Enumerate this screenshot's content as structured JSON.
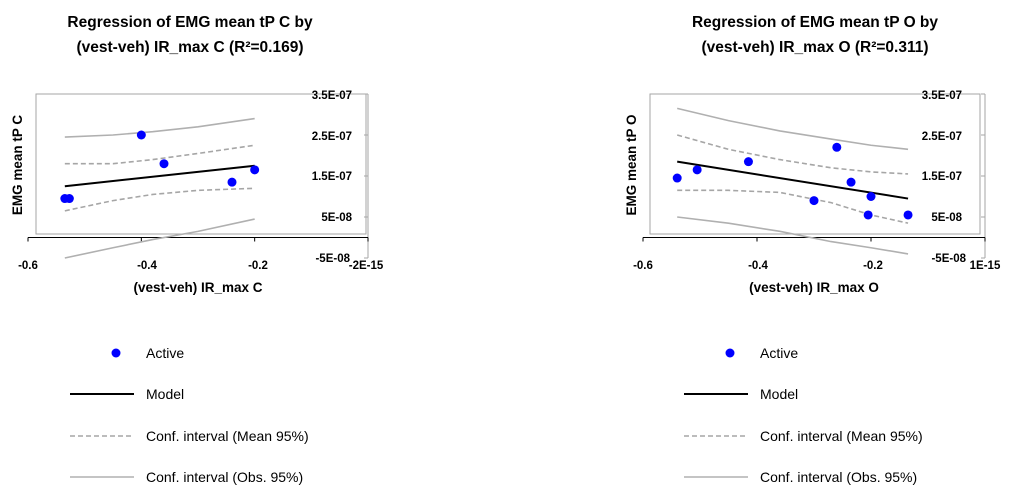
{
  "chart_data": [
    {
      "type": "scatter",
      "title": [
        "Regression of EMG mean tP C by",
        "(vest-veh) IR_max C (R²=0.169)"
      ],
      "xlabel": "(vest-veh) IR_max C",
      "ylabel": "EMG mean tP C",
      "xlim": [
        -0.6,
        0.0
      ],
      "ylim": [
        -5e-08,
        3.5e-07
      ],
      "x_ticks": [
        -0.6,
        -0.4,
        -0.2
      ],
      "x_tick_labels": [
        "-0.6",
        "-0.4",
        "-0.2"
      ],
      "x_origin_label": "-2E-15",
      "y_ticks": [
        -5e-08,
        5e-08,
        1.5e-07,
        2.5e-07,
        3.5e-07
      ],
      "y_tick_labels": [
        "-5E-08",
        "5E-08",
        "1.5E-07",
        "2.5E-07",
        "3.5E-07"
      ],
      "grid": false,
      "legend_position": "bottom-left",
      "colors": {
        "active": "#0000ff",
        "model": "#000000",
        "conf_mean": "#a6a6a6",
        "conf_obs": "#b0b0b0",
        "frame": "#a6a6a6"
      },
      "series": [
        {
          "name": "Active",
          "kind": "points",
          "x": [
            -0.535,
            -0.527,
            -0.4,
            -0.36,
            -0.24,
            -0.2
          ],
          "y": [
            9.5e-08,
            9.5e-08,
            2.5e-07,
            1.8e-07,
            1.35e-07,
            1.65e-07
          ]
        },
        {
          "name": "Model",
          "kind": "line",
          "x": [
            -0.535,
            -0.2
          ],
          "y": [
            1.25e-07,
            1.75e-07
          ]
        },
        {
          "name": "Conf. interval (Mean 95%)",
          "kind": "dashed",
          "band": "upper",
          "x": [
            -0.535,
            -0.45,
            -0.38,
            -0.3,
            -0.2
          ],
          "y": [
            1.8e-07,
            1.8e-07,
            1.9e-07,
            2.05e-07,
            2.25e-07
          ]
        },
        {
          "name": "Conf. interval (Mean 95%)",
          "kind": "dashed",
          "band": "lower",
          "x": [
            -0.535,
            -0.45,
            -0.38,
            -0.3,
            -0.2
          ],
          "y": [
            6.5e-08,
            9e-08,
            1.05e-07,
            1.15e-07,
            1.2e-07
          ]
        },
        {
          "name": "Conf. interval (Obs. 95%)",
          "kind": "solid",
          "band": "upper",
          "x": [
            -0.535,
            -0.45,
            -0.38,
            -0.3,
            -0.2
          ],
          "y": [
            2.45e-07,
            2.5e-07,
            2.58e-07,
            2.7e-07,
            2.9e-07
          ]
        },
        {
          "name": "Conf. interval (Obs. 95%)",
          "kind": "solid",
          "band": "lower",
          "x": [
            -0.535,
            -0.45,
            -0.38,
            -0.3,
            -0.2
          ],
          "y": [
            -5e-08,
            -2.5e-08,
            -5e-09,
            1.5e-08,
            4.5e-08
          ]
        }
      ]
    },
    {
      "type": "scatter",
      "title": [
        "Regression of EMG mean tP O by",
        "(vest-veh) IR_max O (R²=0.311)"
      ],
      "xlabel": "(vest-veh) IR_max O",
      "ylabel": "EMG mean tP O",
      "xlim": [
        -0.6,
        0.0
      ],
      "ylim": [
        -5e-08,
        3.5e-07
      ],
      "x_ticks": [
        -0.6,
        -0.4,
        -0.2
      ],
      "x_tick_labels": [
        "-0.6",
        "-0.4",
        "-0.2"
      ],
      "x_origin_label": "1E-15",
      "y_ticks": [
        -5e-08,
        5e-08,
        1.5e-07,
        2.5e-07,
        3.5e-07
      ],
      "y_tick_labels": [
        "-5E-08",
        "5E-08",
        "1.5E-07",
        "2.5E-07",
        "3.5E-07"
      ],
      "grid": false,
      "legend_position": "bottom-left",
      "colors": {
        "active": "#0000ff",
        "model": "#000000",
        "conf_mean": "#a6a6a6",
        "conf_obs": "#b0b0b0",
        "frame": "#a6a6a6"
      },
      "series": [
        {
          "name": "Active",
          "kind": "points",
          "x": [
            -0.54,
            -0.505,
            -0.415,
            -0.3,
            -0.26,
            -0.235,
            -0.205,
            -0.2,
            -0.135
          ],
          "y": [
            1.45e-07,
            1.65e-07,
            1.85e-07,
            9e-08,
            2.2e-07,
            1.35e-07,
            5.5e-08,
            1e-07,
            5.5e-08
          ]
        },
        {
          "name": "Model",
          "kind": "line",
          "x": [
            -0.54,
            -0.135
          ],
          "y": [
            1.85e-07,
            9.5e-08
          ]
        },
        {
          "name": "Conf. interval (Mean 95%)",
          "kind": "dashed",
          "band": "upper",
          "x": [
            -0.54,
            -0.45,
            -0.36,
            -0.27,
            -0.2,
            -0.135
          ],
          "y": [
            2.5e-07,
            2.15e-07,
            1.9e-07,
            1.7e-07,
            1.6e-07,
            1.55e-07
          ]
        },
        {
          "name": "Conf. interval (Mean 95%)",
          "kind": "dashed",
          "band": "lower",
          "x": [
            -0.54,
            -0.45,
            -0.36,
            -0.27,
            -0.2,
            -0.135
          ],
          "y": [
            1.15e-07,
            1.15e-07,
            1.1e-07,
            8.5e-08,
            5.5e-08,
            3.5e-08
          ]
        },
        {
          "name": "Conf. interval (Obs. 95%)",
          "kind": "solid",
          "band": "upper",
          "x": [
            -0.54,
            -0.45,
            -0.36,
            -0.27,
            -0.2,
            -0.135
          ],
          "y": [
            3.15e-07,
            2.85e-07,
            2.6e-07,
            2.4e-07,
            2.25e-07,
            2.15e-07
          ]
        },
        {
          "name": "Conf. interval (Obs. 95%)",
          "kind": "solid",
          "band": "lower",
          "x": [
            -0.54,
            -0.45,
            -0.36,
            -0.27,
            -0.2,
            -0.135
          ],
          "y": [
            5e-08,
            3.5e-08,
            1.5e-08,
            -1e-08,
            -2.5e-08,
            -4e-08
          ]
        }
      ]
    }
  ],
  "legend": [
    {
      "label": "Active",
      "kind": "points"
    },
    {
      "label": "Model",
      "kind": "line"
    },
    {
      "label": "Conf. interval (Mean 95%)",
      "kind": "dashed"
    },
    {
      "label": "Conf. interval (Obs. 95%)",
      "kind": "solid"
    }
  ]
}
